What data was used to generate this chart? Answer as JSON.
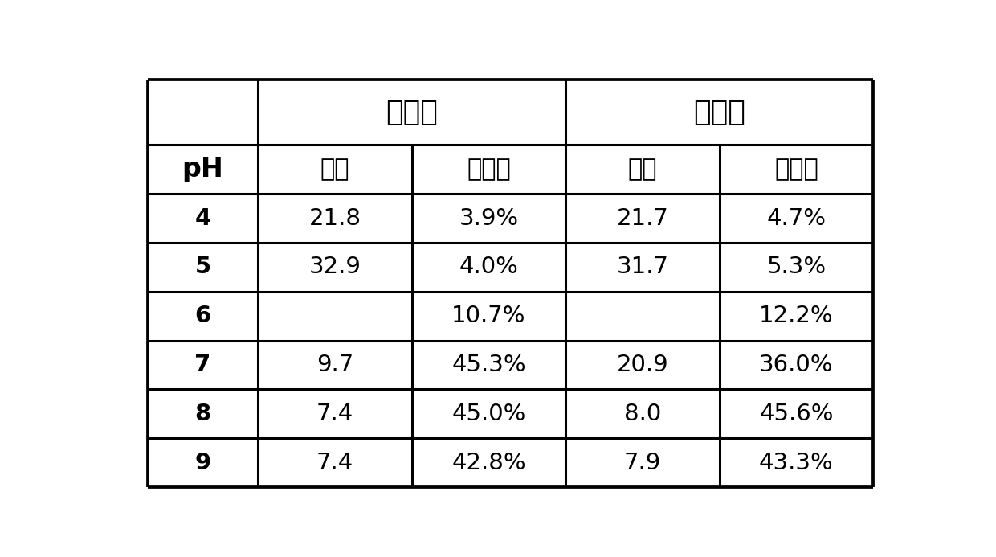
{
  "header_row1_left": "共聚法",
  "header_row1_right": "复合法",
  "header_row2": [
    "pH",
    "浊度",
    "去除率",
    "浊度",
    "去除率"
  ],
  "rows": [
    [
      "4",
      "21.8",
      "3.9%",
      "21.7",
      "4.7%"
    ],
    [
      "5",
      "32.9",
      "4.0%",
      "31.7",
      "5.3%"
    ],
    [
      "6",
      "",
      "10.7%",
      "",
      "12.2%"
    ],
    [
      "7",
      "9.7",
      "45.3%",
      "20.9",
      "36.0%"
    ],
    [
      "8",
      "7.4",
      "45.0%",
      "8.0",
      "45.6%"
    ],
    [
      "9",
      "7.4",
      "42.8%",
      "7.9",
      "43.3%"
    ]
  ],
  "bg_color": "#ffffff",
  "line_color": "#000000",
  "text_color": "#000000",
  "header1_fontsize": 26,
  "header2_fontsize": 22,
  "cell_fontsize": 21,
  "ph_fontsize": 24
}
